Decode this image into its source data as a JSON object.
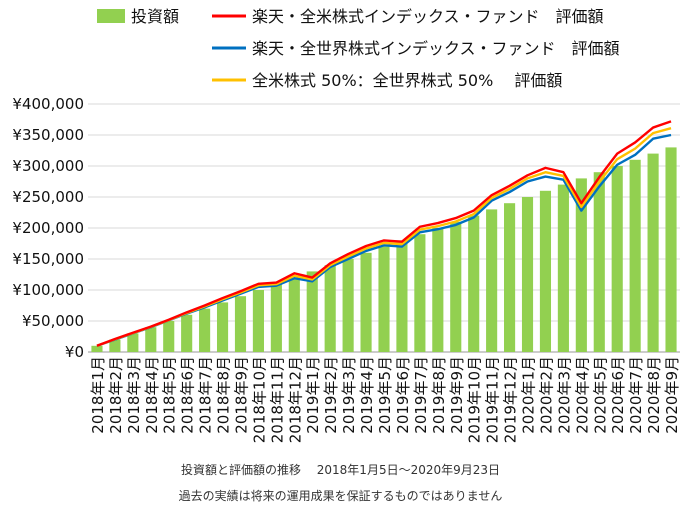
{
  "chart_data": {
    "type": "bar",
    "categories": [
      "2018年1月",
      "2018年2月",
      "2018年3月",
      "2018年4月",
      "2018年5月",
      "2018年6月",
      "2018年7月",
      "2018年8月",
      "2018年9月",
      "2018年10月",
      "2018年11月",
      "2018年12月",
      "2019年1月",
      "2019年2月",
      "2019年3月",
      "2019年4月",
      "2019年5月",
      "2019年6月",
      "2019年7月",
      "2019年8月",
      "2019年9月",
      "2019年10月",
      "2019年11月",
      "2019年12月",
      "2020年1月",
      "2020年2月",
      "2020年3月",
      "2020年4月",
      "2020年5月",
      "2020年6月",
      "2020年7月",
      "2020年8月",
      "2020年9月"
    ],
    "ylim": [
      0,
      400000
    ],
    "yticks": [
      0,
      50000,
      100000,
      150000,
      200000,
      250000,
      300000,
      350000,
      400000
    ],
    "ytick_labels": [
      "¥0",
      "¥50,000",
      "¥100,000",
      "¥150,000",
      "¥200,000",
      "¥250,000",
      "¥300,000",
      "¥350,000",
      "¥400,000"
    ],
    "grid": true,
    "legend_position": "top",
    "series": [
      {
        "name": "投資額",
        "kind": "bar",
        "color": "#92d050",
        "values": [
          10000,
          20000,
          30000,
          40000,
          50000,
          60000,
          70000,
          80000,
          90000,
          100000,
          110000,
          120000,
          130000,
          140000,
          150000,
          160000,
          170000,
          180000,
          190000,
          200000,
          210000,
          220000,
          230000,
          240000,
          250000,
          260000,
          270000,
          280000,
          290000,
          300000,
          310000,
          320000,
          330000
        ]
      },
      {
        "name": "楽天・全米株式インデックス・ファンド　評価額",
        "kind": "line",
        "color": "#ff0000",
        "values": [
          10000,
          21000,
          31000,
          41000,
          52000,
          64000,
          75000,
          87000,
          98000,
          110000,
          112000,
          127000,
          120000,
          143000,
          158000,
          171000,
          180000,
          178000,
          202000,
          208000,
          216000,
          228000,
          253000,
          268000,
          285000,
          297000,
          290000,
          240000,
          282000,
          320000,
          338000,
          362000,
          372000
        ]
      },
      {
        "name": "楽天・全世界株式インデックス・ファンド　評価額",
        "kind": "line",
        "color": "#0070c0",
        "values": [
          10000,
          20000,
          30000,
          40000,
          51000,
          62000,
          72000,
          83000,
          94000,
          105000,
          107000,
          119000,
          114000,
          137000,
          150000,
          163000,
          172000,
          170000,
          193000,
          198000,
          205000,
          217000,
          244000,
          258000,
          275000,
          283000,
          278000,
          228000,
          267000,
          302000,
          318000,
          344000,
          350000
        ]
      },
      {
        "name": "全米株式 50%：全世界株式 50%　 評価額",
        "kind": "line",
        "color": "#ffc000",
        "values": [
          10000,
          20500,
          30500,
          40500,
          51500,
          63000,
          73500,
          85000,
          96000,
          107500,
          109500,
          123000,
          117000,
          140000,
          154000,
          167000,
          176000,
          174000,
          197500,
          203000,
          210500,
          222500,
          248500,
          263000,
          280000,
          290000,
          284000,
          234000,
          274500,
          311000,
          328000,
          353000,
          361000
        ]
      }
    ]
  },
  "captions": {
    "line1": "投資額と評価額の推移　 2018年1月5日～2020年9月23日",
    "line2": "過去の実績は将来の運用成果を保証するものではありません"
  }
}
